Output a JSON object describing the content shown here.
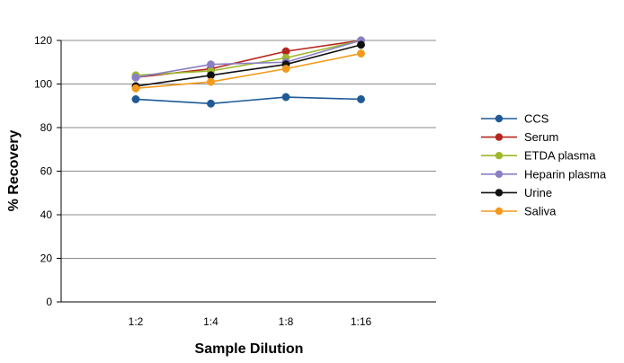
{
  "chart_data": {
    "type": "line",
    "title": "",
    "xlabel": "Sample Dilution",
    "ylabel": "% Recovery",
    "categories": [
      "1:2",
      "1:4",
      "1:8",
      "1:16"
    ],
    "ylim": [
      0,
      120
    ],
    "yticks": [
      0,
      20,
      40,
      60,
      80,
      100,
      120
    ],
    "grid": "horizontal",
    "legend": "right",
    "series": [
      {
        "name": "CCS",
        "color": "#1f5a96",
        "values": [
          93,
          91,
          94,
          93
        ]
      },
      {
        "name": "Serum",
        "color": "#b5261e",
        "values": [
          103,
          107,
          115,
          120
        ]
      },
      {
        "name": "ETDA plasma",
        "color": "#9db82b",
        "values": [
          104,
          106,
          112,
          120
        ]
      },
      {
        "name": "Heparin plasma",
        "color": "#8a7fc4",
        "values": [
          103,
          109,
          110,
          120
        ]
      },
      {
        "name": "Urine",
        "color": "#111111",
        "values": [
          99,
          104,
          109,
          118
        ]
      },
      {
        "name": "Saliva",
        "color": "#f39a1c",
        "values": [
          98,
          101,
          107,
          114
        ]
      }
    ]
  }
}
